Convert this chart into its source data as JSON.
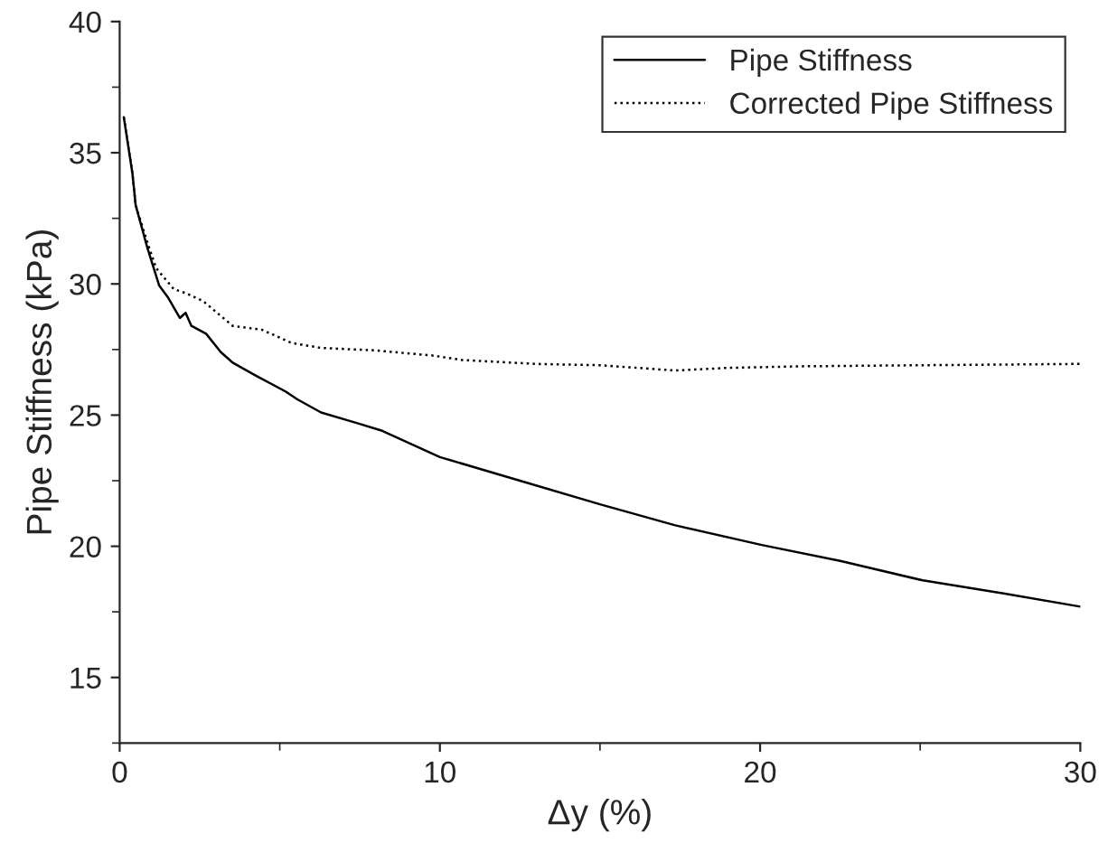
{
  "chart_data": {
    "type": "line",
    "xlabel": "Δy (%)",
    "ylabel": "Pipe Stiffness (kPa)",
    "xlim": [
      0,
      30
    ],
    "ylim": [
      12.5,
      40
    ],
    "xticks": [
      0,
      10,
      20,
      30
    ],
    "yticks": [
      15,
      20,
      25,
      30,
      35,
      40
    ],
    "grid": false,
    "legend": "top right",
    "series": [
      {
        "name": "Pipe Stiffness",
        "color": "#000000",
        "line_style": "solid",
        "x": [
          0.13,
          0.4,
          0.5,
          0.86,
          1.23,
          1.5,
          1.88,
          2.06,
          2.24,
          2.7,
          3.16,
          3.53,
          4.26,
          5.18,
          5.55,
          6.29,
          7.4,
          8.2,
          10.0,
          12.5,
          15.0,
          17.35,
          20.05,
          22.5,
          25.08,
          27.6,
          30
        ],
        "values": [
          36.35,
          34.2,
          33.0,
          31.4,
          29.95,
          29.5,
          28.7,
          28.9,
          28.4,
          28.1,
          27.4,
          27.0,
          26.5,
          25.9,
          25.6,
          25.1,
          24.7,
          24.4,
          23.4,
          22.5,
          21.6,
          20.8,
          20.05,
          19.44,
          18.7,
          18.2,
          17.7
        ]
      },
      {
        "name": "Corrected Pipe Stiffness",
        "color": "#000000",
        "line_style": "dotted",
        "x": [
          0.13,
          0.4,
          0.5,
          0.86,
          1.14,
          1.69,
          2.06,
          2.6,
          3.53,
          4.45,
          5.37,
          6.29,
          7.94,
          9.77,
          10.7,
          13.0,
          15.0,
          17.35,
          19.0,
          21.3,
          25.0,
          30
        ],
        "values": [
          36.35,
          34.2,
          33.0,
          31.6,
          30.6,
          29.8,
          29.65,
          29.35,
          28.4,
          28.25,
          27.75,
          27.56,
          27.47,
          27.27,
          27.1,
          26.95,
          26.9,
          26.7,
          26.8,
          26.86,
          26.9,
          26.95
        ]
      }
    ]
  }
}
